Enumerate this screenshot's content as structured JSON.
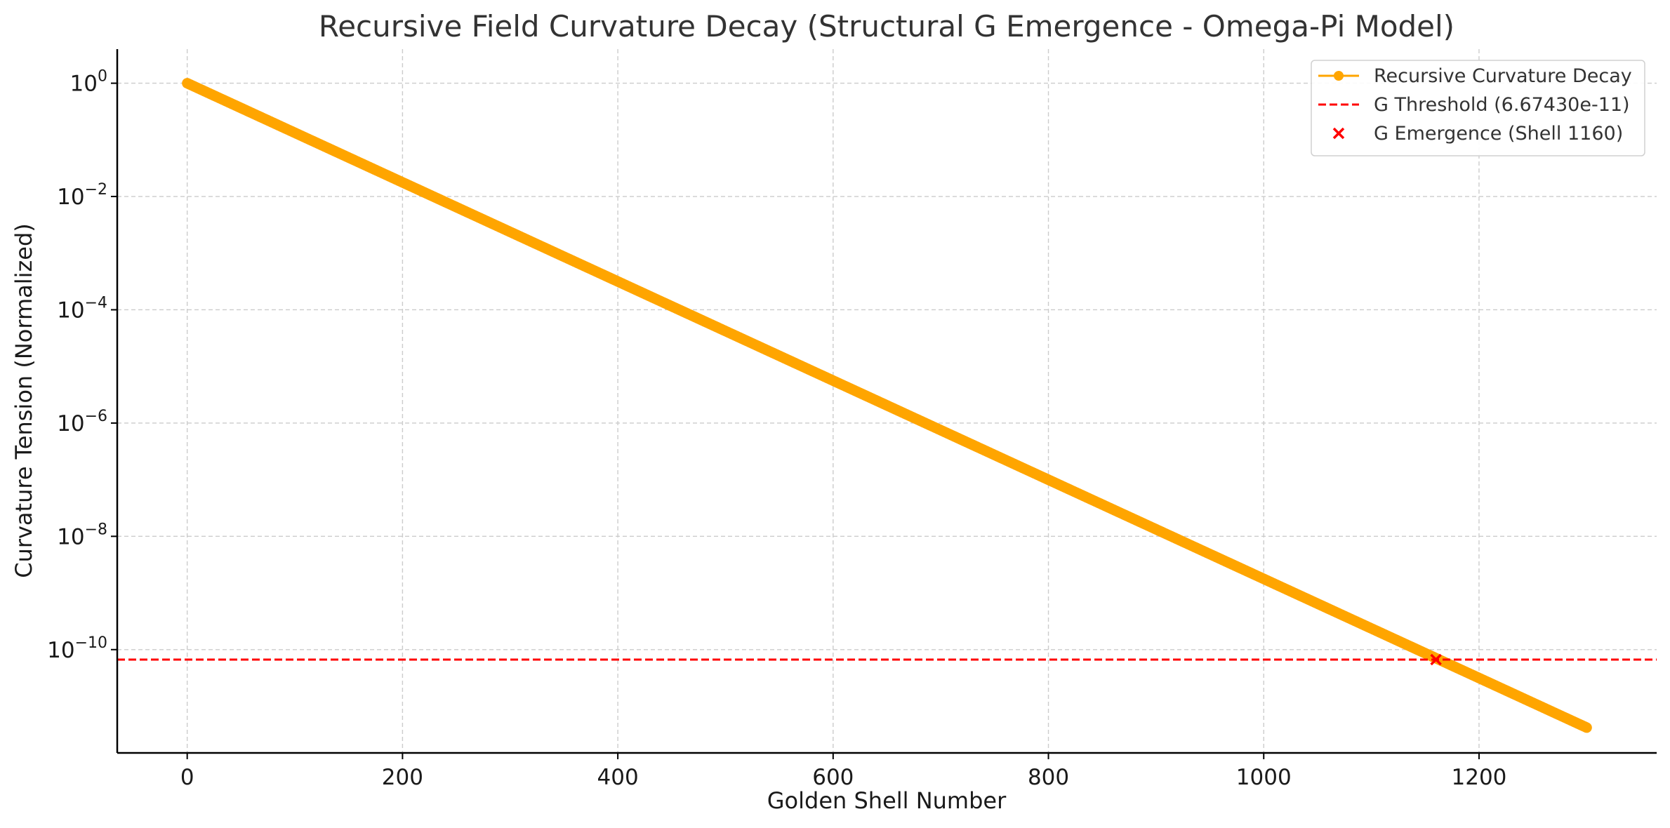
{
  "chart_data": {
    "type": "line",
    "title": "Recursive Field Curvature Decay (Structural G Emergence - Omega-Pi Model)",
    "xlabel": "Golden Shell Number",
    "ylabel": "Curvature Tension (Normalized)",
    "x_scale": "linear",
    "y_scale": "log",
    "xlim": [
      -65,
      1365
    ],
    "ylim": [
      1.5e-12,
      4.0
    ],
    "x_ticks": [
      0,
      200,
      400,
      600,
      800,
      1000,
      1200
    ],
    "x_tick_labels": [
      "0",
      "200",
      "400",
      "600",
      "800",
      "1000",
      "1200"
    ],
    "y_ticks": [
      1,
      0.01,
      0.0001,
      1e-06,
      1e-08,
      1e-10
    ],
    "y_tick_labels": [
      {
        "base": "10",
        "exp": "0"
      },
      {
        "base": "10",
        "exp": "−2"
      },
      {
        "base": "10",
        "exp": "−4"
      },
      {
        "base": "10",
        "exp": "−6"
      },
      {
        "base": "10",
        "exp": "−8"
      },
      {
        "base": "10",
        "exp": "−10"
      }
    ],
    "grid": true,
    "legend_position": "top-right",
    "series": [
      {
        "name": "Recursive Curvature Decay",
        "kind": "line-markers",
        "color": "#FFA500",
        "x_start": 0,
        "x_end": 1300,
        "x_step": 1,
        "y_start": 1.0,
        "y_end": 4.2e-12
      },
      {
        "name": "G Threshold (6.67430e-11)",
        "kind": "hline",
        "color": "#FF0000",
        "y": 6.6743e-11
      },
      {
        "name": "G Emergence (Shell 1160)",
        "kind": "marker-x",
        "color": "#FF0000",
        "x": 1160,
        "y": 6.6743e-11
      }
    ]
  }
}
